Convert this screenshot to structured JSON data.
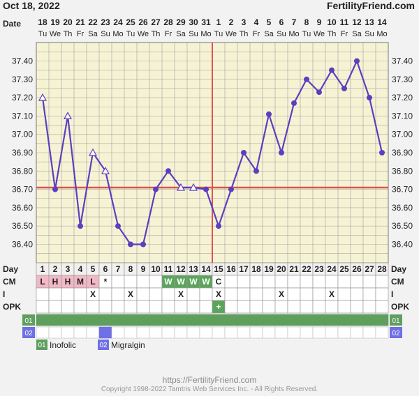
{
  "header": {
    "date_label": "Oct 18, 2022",
    "site": "FertilityFriend.com"
  },
  "chart_data": {
    "type": "line",
    "title": "",
    "ylim": [
      36.3,
      37.5
    ],
    "yticks": [
      "37.40",
      "37.30",
      "37.20",
      "37.10",
      "37.00",
      "36.90",
      "36.80",
      "36.70",
      "36.60",
      "36.50",
      "36.40"
    ],
    "dates": [
      "18",
      "19",
      "20",
      "21",
      "22",
      "23",
      "24",
      "25",
      "26",
      "27",
      "28",
      "29",
      "30",
      "31",
      "1",
      "2",
      "3",
      "4",
      "5",
      "6",
      "7",
      "8",
      "9",
      "10",
      "11",
      "12",
      "13",
      "14"
    ],
    "weekdays": [
      "Tu",
      "We",
      "Th",
      "Fr",
      "Sa",
      "Su",
      "Mo",
      "Tu",
      "We",
      "Th",
      "Fr",
      "Sa",
      "Su",
      "Mo",
      "Tu",
      "We",
      "Th",
      "Fr",
      "Sa",
      "Su",
      "Mo",
      "Tu",
      "We",
      "Th",
      "Fr",
      "Sa",
      "Su",
      "Mo"
    ],
    "days": [
      "1",
      "2",
      "3",
      "4",
      "5",
      "6",
      "7",
      "8",
      "9",
      "10",
      "11",
      "12",
      "13",
      "14",
      "15",
      "16",
      "17",
      "18",
      "19",
      "20",
      "21",
      "22",
      "23",
      "24",
      "25",
      "26",
      "27",
      "28"
    ],
    "temps": [
      37.2,
      36.7,
      37.1,
      36.5,
      36.9,
      36.8,
      36.5,
      36.4,
      36.4,
      36.7,
      36.8,
      36.71,
      36.71,
      36.7,
      36.5,
      36.7,
      36.9,
      36.8,
      37.11,
      36.9,
      37.17,
      37.3,
      37.23,
      37.35,
      37.25,
      37.4,
      37.2,
      36.9
    ],
    "markers": [
      "triangle",
      "dot",
      "triangle",
      "dot",
      "triangle",
      "triangle",
      "dot",
      "dot",
      "dot",
      "dot",
      "dot",
      "triangle",
      "triangle",
      "dot",
      "dot",
      "dot",
      "dot",
      "dot",
      "dot",
      "dot",
      "dot",
      "dot",
      "dot",
      "dot",
      "dot",
      "dot",
      "dot",
      "dot"
    ],
    "coverline": 36.71,
    "ovulation_day": 15,
    "colors": {
      "temp_line": "#5a3fc0",
      "coverline": "#e0524f",
      "ovulation": "#e0524f",
      "grid": "#a9a9a9",
      "plot_bg": "#f6f3d4",
      "cm_pink": "#f2b8c6",
      "cm_green": "#5aa55a",
      "med_green": "#5f9e5f",
      "med_blue": "#6f6fe6"
    },
    "rows": {
      "day_label": "Day",
      "date_label": "Date",
      "cm_label": "CM",
      "i_label": "I",
      "opk_label": "OPK",
      "cm": [
        "L",
        "H",
        "H",
        "M",
        "L",
        "*",
        "",
        "",
        "",
        "",
        "W",
        "W",
        "W",
        "W",
        "C",
        "",
        "",
        "",
        "",
        "",
        "",
        "",
        "",
        "",
        "",
        "",
        "",
        ""
      ],
      "intercourse": [
        "",
        "",
        "",
        "",
        "X",
        "",
        "",
        "X",
        "",
        "",
        "",
        "X",
        "",
        "",
        "X",
        "",
        "",
        "",
        "",
        "X",
        "",
        "",
        "",
        "X",
        "",
        "",
        "",
        ""
      ],
      "opk": [
        "",
        "",
        "",
        "",
        "",
        "",
        "",
        "",
        "",
        "",
        "",
        "",
        "",
        "",
        "+",
        "",
        "",
        "",
        "",
        "",
        "",
        "",
        "",
        "",
        "",
        "",
        "",
        ""
      ]
    },
    "medications": [
      {
        "code": "01",
        "name": "Inofolic",
        "days": [
          1,
          28
        ]
      },
      {
        "code": "02",
        "name": "Migralgin",
        "days": [
          6,
          6
        ]
      }
    ]
  },
  "footer": {
    "url": "https://FertilityFriend.com",
    "copyright": "Copyright 1998-2022 Tamtris Web Services Inc. - All Rights Reserved."
  }
}
